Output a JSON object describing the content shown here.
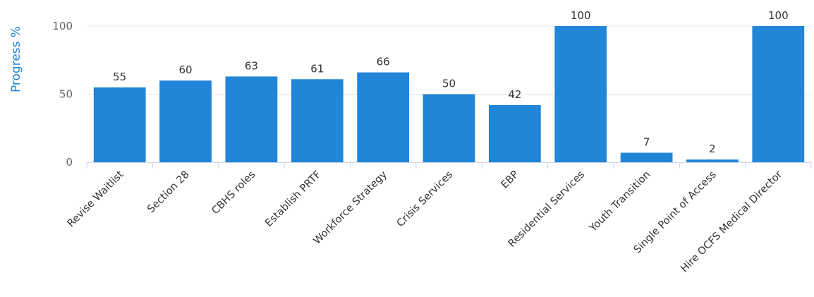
{
  "chart_data": {
    "type": "bar",
    "ylabel": "Progress %",
    "ylim": [
      0,
      100
    ],
    "yticks": [
      0,
      50,
      100
    ],
    "grid": true,
    "color": "#2185d8",
    "categories": [
      "Revise Waitlist",
      "Section 28",
      "CBHS roles",
      "Establish PRTF",
      "Workforce Strategy",
      "Crisis Services",
      "EBP",
      "Residential Services",
      "Youth Transition",
      "Single Point of Access",
      "Hire OCFS Medical Director"
    ],
    "values": [
      55,
      60,
      63,
      61,
      66,
      50,
      42,
      100,
      7,
      2,
      100
    ]
  }
}
